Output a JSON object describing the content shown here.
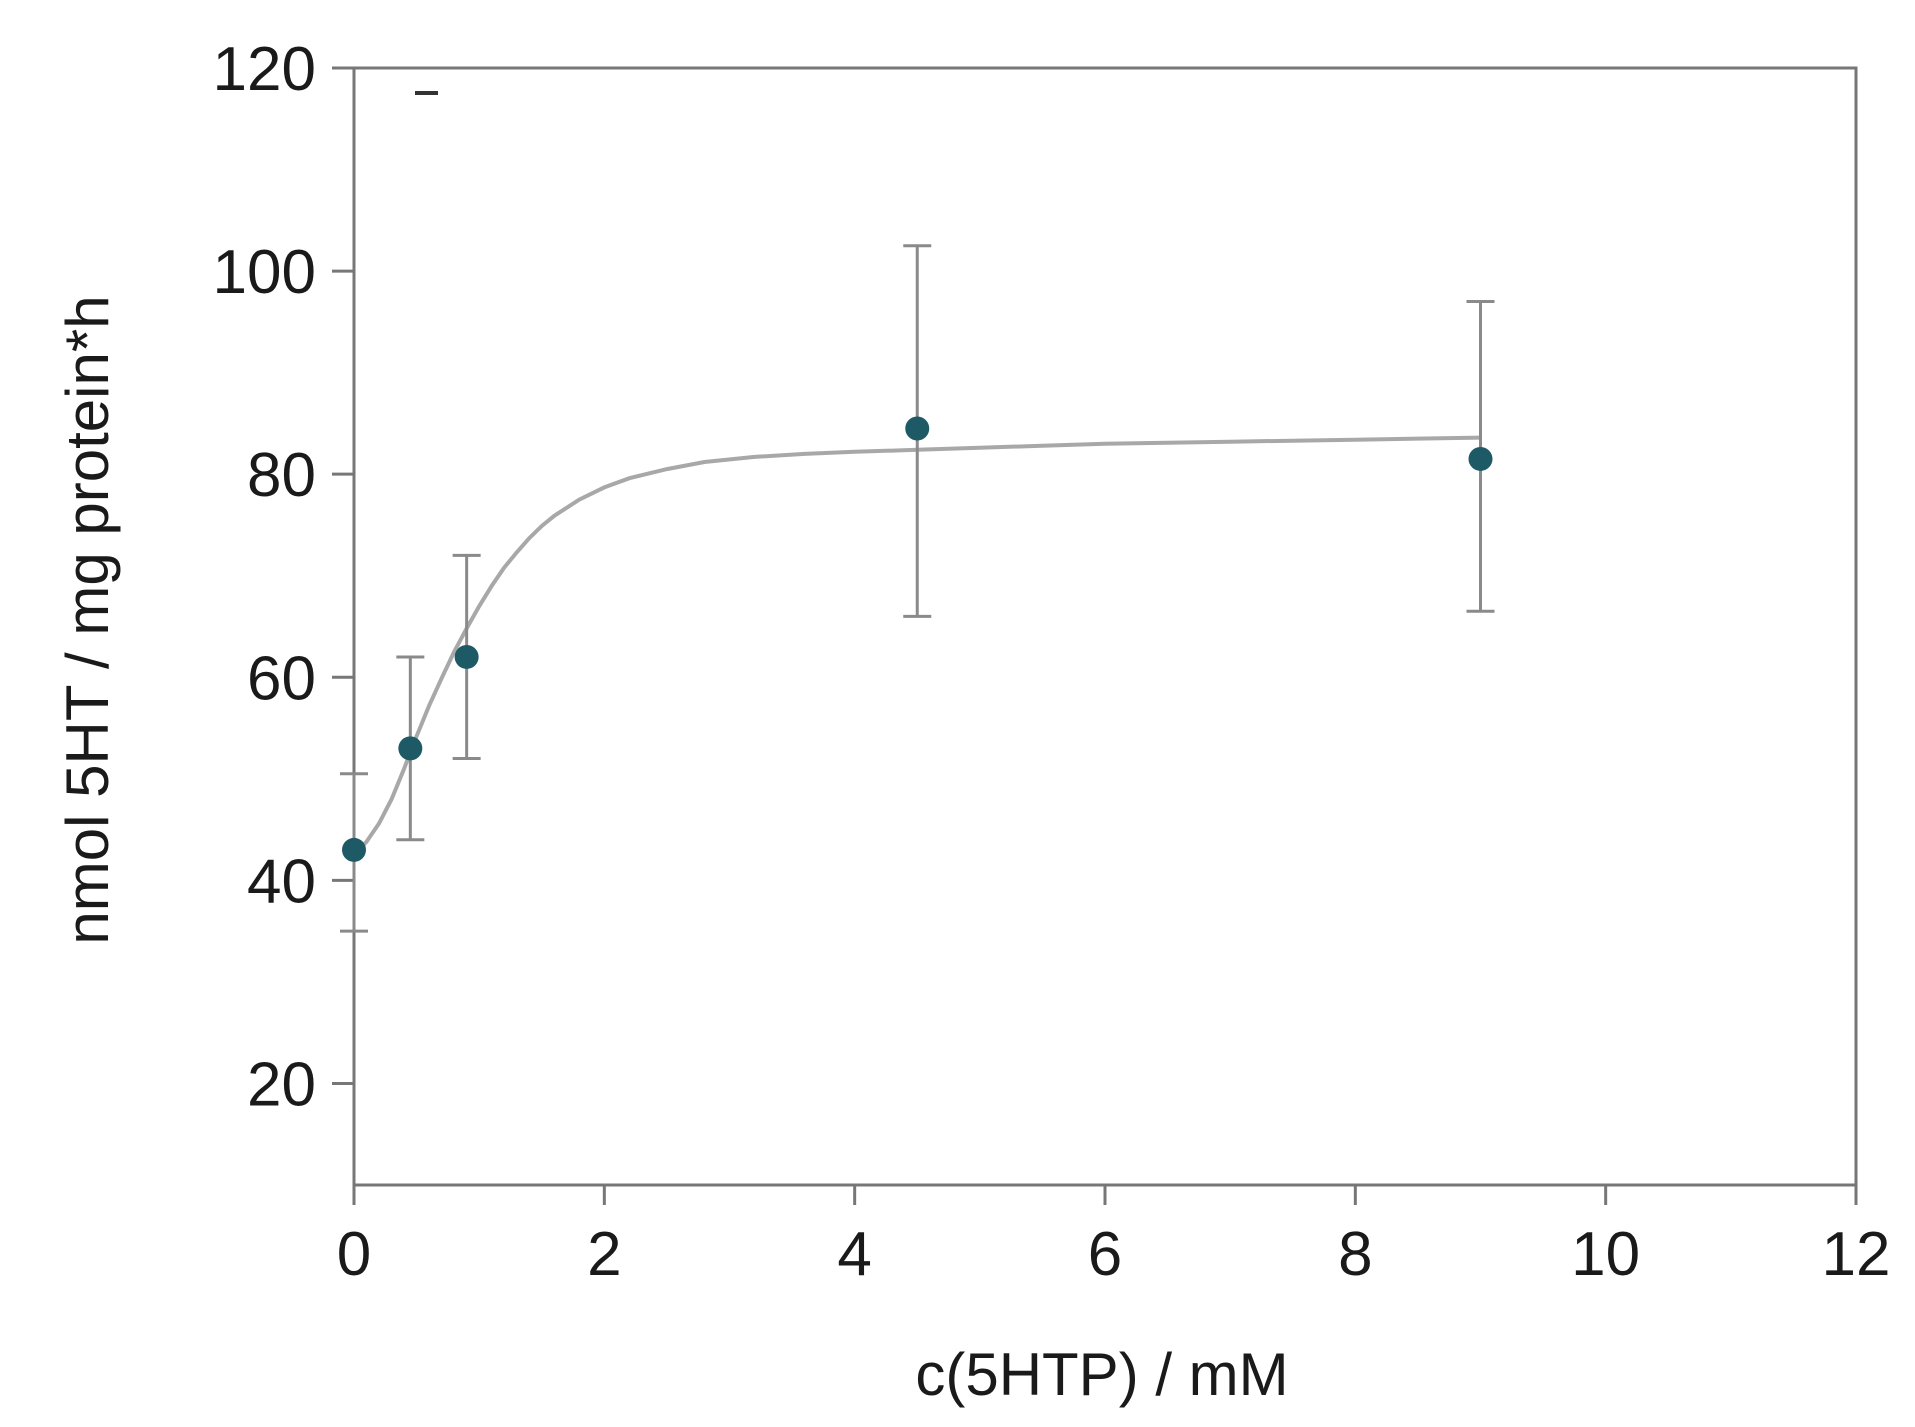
{
  "chart_data": {
    "type": "scatter",
    "title": "",
    "xlabel": "c(5HTP) / mM",
    "ylabel": "nmol 5HT / mg protein*h",
    "xlim": [
      0,
      12
    ],
    "ylim": [
      10,
      120
    ],
    "x_ticks": [
      0,
      2,
      4,
      6,
      8,
      10,
      12
    ],
    "y_ticks": [
      20,
      40,
      60,
      80,
      100,
      120
    ],
    "grid": false,
    "legend": "none",
    "colors": {
      "marker": "#1d5a66",
      "fit_line": "#a8a8a8",
      "error_bar": "#8a8a8a",
      "axis": "#777777"
    },
    "points": [
      {
        "x": 0,
        "y": 43,
        "err_low": 35,
        "err_high": 50.5
      },
      {
        "x": 0.45,
        "y": 53,
        "err_low": 44,
        "err_high": 62
      },
      {
        "x": 0.9,
        "y": 62,
        "err_low": 52,
        "err_high": 72
      },
      {
        "x": 4.5,
        "y": 84.5,
        "err_low": 66,
        "err_high": 102.5
      },
      {
        "x": 9,
        "y": 81.5,
        "err_low": 66.5,
        "err_high": 97
      }
    ],
    "fit_curve": {
      "x": [
        0,
        0.1,
        0.2,
        0.3,
        0.4,
        0.5,
        0.6,
        0.7,
        0.8,
        0.9,
        1.0,
        1.1,
        1.2,
        1.3,
        1.4,
        1.5,
        1.6,
        1.8,
        2.0,
        2.2,
        2.5,
        2.8,
        3.2,
        3.6,
        4.0,
        4.5,
        5.0,
        5.5,
        6.0,
        6.5,
        7.0,
        7.5,
        8.0,
        8.5,
        9.0
      ],
      "y": [
        42.5,
        43.8,
        45.6,
        48.0,
        51.0,
        54.2,
        57.2,
        59.9,
        62.5,
        64.8,
        67.0,
        69.0,
        70.8,
        72.3,
        73.7,
        74.9,
        75.9,
        77.5,
        78.7,
        79.6,
        80.5,
        81.2,
        81.7,
        82.0,
        82.2,
        82.4,
        82.6,
        82.8,
        83.0,
        83.1,
        83.2,
        83.3,
        83.4,
        83.5,
        83.6
      ]
    }
  }
}
